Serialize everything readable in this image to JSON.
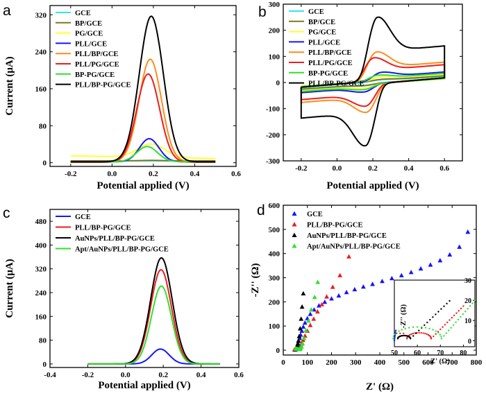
{
  "figure": {
    "panels": [
      {
        "id": "a",
        "letter": "a"
      },
      {
        "id": "b",
        "letter": "b"
      },
      {
        "id": "c",
        "letter": "c"
      },
      {
        "id": "d",
        "letter": "d"
      }
    ]
  },
  "chart_data": [
    {
      "id": "a",
      "type": "line",
      "xlabel": "Potential applied (V)",
      "ylabel": "Current (μA)",
      "xlim": [
        -0.3,
        0.6
      ],
      "ylim": [
        -8,
        340
      ],
      "xticks": [
        "-0.2",
        "0.0",
        "0.2",
        "0.4",
        "0.6"
      ],
      "xtick_values": [
        -0.2,
        0,
        0.2,
        0.4,
        0.6
      ],
      "yticks": [
        "0",
        "80",
        "160",
        "240",
        "320"
      ],
      "ytick_values": [
        0,
        80,
        160,
        240,
        320
      ],
      "legend_position": "top-left",
      "x_range": [
        -0.2,
        0.5
      ],
      "series": [
        {
          "name": "GCE",
          "color": "#33e6f0",
          "baseline": 4,
          "peak_height": 0,
          "center": 0.19,
          "sigma": 0.06
        },
        {
          "name": "BP/GCE",
          "color": "#7a7a1e",
          "baseline": 4,
          "peak_height": 1,
          "center": 0.19,
          "sigma": 0.06
        },
        {
          "name": "PG/GCE",
          "color": "#ffff33",
          "baseline": 15,
          "baseline_end": 9,
          "peak_height": 29,
          "center": 0.19,
          "sigma": 0.065
        },
        {
          "name": "PLL/GCE",
          "color": "#1414ff",
          "baseline": 2,
          "peak_height": 50,
          "center": 0.18,
          "sigma": 0.047
        },
        {
          "name": "PLL/BP/GCE",
          "color": "#ff8c1a",
          "baseline": 2,
          "peak_height": 222,
          "center": 0.185,
          "sigma": 0.054
        },
        {
          "name": "PLL/PG/GCE",
          "color": "#ee1c1c",
          "baseline": 1,
          "peak_height": 191,
          "center": 0.175,
          "sigma": 0.055
        },
        {
          "name": "BP-PG/GCE",
          "color": "#2fe02f",
          "baseline": 2,
          "peak_height": 33,
          "center": 0.17,
          "sigma": 0.05
        },
        {
          "name": "PLL/BP-PG/GCE",
          "color": "#000000",
          "baseline": 2,
          "peak_height": 315,
          "center": 0.19,
          "sigma": 0.058
        }
      ]
    },
    {
      "id": "b",
      "type": "line",
      "xlabel": "Potential applied (V)",
      "ylabel": "",
      "xlim": [
        -0.3,
        0.7
      ],
      "ylim": [
        -300,
        300
      ],
      "xticks": [
        "-0.2",
        "0.0",
        "0.2",
        "0.4",
        "0.6"
      ],
      "xtick_values": [
        -0.2,
        0,
        0.2,
        0.4,
        0.6
      ],
      "yticks": [
        "-300",
        "-200",
        "-100",
        "0",
        "100",
        "200",
        "300"
      ],
      "ytick_values": [
        -300,
        -200,
        -100,
        0,
        100,
        200,
        300
      ],
      "legend_position": "top-left",
      "x_range": [
        -0.2,
        0.6
      ],
      "series": [
        {
          "name": "GCE",
          "color": "#33e6f0",
          "anodic_peak": 6,
          "cathodic_peak": 6,
          "epa": 0.25,
          "epc": 0.15,
          "cap": 3,
          "slope": 30
        },
        {
          "name": "BP/GCE",
          "color": "#7a7a1e",
          "anodic_peak": 6,
          "cathodic_peak": 6,
          "epa": 0.25,
          "epc": 0.15,
          "cap": 4,
          "slope": 32
        },
        {
          "name": "PG/GCE",
          "color": "#ffff33",
          "anodic_peak": 16,
          "cathodic_peak": 16,
          "epa": 0.25,
          "epc": 0.15,
          "cap": 5,
          "slope": 32
        },
        {
          "name": "PLL/GCE",
          "color": "#1414ff",
          "anodic_peak": 33,
          "cathodic_peak": 30,
          "epa": 0.25,
          "epc": 0.15,
          "cap": 4,
          "slope": 36
        },
        {
          "name": "PLL/BP/GCE",
          "color": "#ff8c1a",
          "anodic_peak": 112,
          "cathodic_peak": 108,
          "epa": 0.22,
          "epc": 0.165,
          "cap": 5,
          "slope": 38
        },
        {
          "name": "PLL/PG/GCE",
          "color": "#ee1c1c",
          "anodic_peak": 90,
          "cathodic_peak": 84,
          "epa": 0.205,
          "epc": 0.16,
          "cap": 5,
          "slope": 38
        },
        {
          "name": "BP-PG/GCE",
          "color": "#2fe02f",
          "anodic_peak": 22,
          "cathodic_peak": 20,
          "epa": 0.23,
          "epc": 0.15,
          "cap": 5,
          "slope": 34
        },
        {
          "name": "PLL/BP-PG/GCE",
          "color": "#000000",
          "anodic_peak": 245,
          "cathodic_peak": 236,
          "epa": 0.225,
          "epc": 0.16,
          "cap": 6,
          "slope": 40
        }
      ]
    },
    {
      "id": "c",
      "type": "line",
      "xlabel": "Potential applied (V)",
      "ylabel": "Current (μA)",
      "xlim": [
        -0.4,
        0.6
      ],
      "ylim": [
        -12,
        520
      ],
      "xticks": [
        "-0.4",
        "-0.2",
        "0.0",
        "0.2",
        "0.4",
        "0.6"
      ],
      "xtick_values": [
        -0.4,
        -0.2,
        0,
        0.2,
        0.4,
        0.6
      ],
      "yticks": [
        "0",
        "80",
        "160",
        "240",
        "320",
        "400",
        "480"
      ],
      "ytick_values": [
        0,
        80,
        160,
        240,
        320,
        400,
        480
      ],
      "legend_position": "top-left",
      "x_range": [
        -0.2,
        0.5
      ],
      "series": [
        {
          "name": "GCE",
          "color": "#1414ff",
          "baseline": 0,
          "peak_height": 50,
          "center": 0.185,
          "sigma": 0.046
        },
        {
          "name": "PLL/BP-PG/GCE",
          "color": "#ee1c1c",
          "baseline": 0,
          "peak_height": 317,
          "center": 0.188,
          "sigma": 0.055
        },
        {
          "name": "AuNPs/PLL/BP-PG/GCE",
          "color": "#000000",
          "baseline": 0,
          "peak_height": 357,
          "center": 0.19,
          "sigma": 0.057
        },
        {
          "name": "Apt/AuNPs/PLL/BP-PG/GCE",
          "color": "#2fe02f",
          "baseline": 0,
          "peak_height": 262,
          "center": 0.19,
          "sigma": 0.053
        }
      ]
    },
    {
      "id": "d",
      "type": "scatter",
      "xlabel": "Z' (Ω)",
      "ylabel": "-Z'' (Ω)",
      "xlim": [
        0,
        800
      ],
      "ylim": [
        -20,
        600
      ],
      "xticks": [
        "0",
        "100",
        "200",
        "300",
        "400",
        "500",
        "600",
        "700",
        "800"
      ],
      "xtick_values": [
        0,
        100,
        200,
        300,
        400,
        500,
        600,
        700,
        800
      ],
      "yticks": [
        "0",
        "100",
        "200",
        "300",
        "400",
        "500",
        "600"
      ],
      "ytick_values": [
        0,
        100,
        200,
        300,
        400,
        500,
        600
      ],
      "legend_position": "top-left",
      "series": [
        {
          "name": "GCE",
          "color": "#1414ff",
          "marker": "triangle",
          "x": [
            50,
            52,
            55,
            58,
            61,
            64,
            68,
            72,
            77,
            83,
            90,
            100,
            112,
            128,
            148,
            172,
            200,
            230,
            262,
            296,
            332,
            370,
            410,
            450,
            490,
            530,
            570,
            610,
            650,
            690,
            730,
            765
          ],
          "y": [
            2,
            6,
            12,
            20,
            28,
            38,
            50,
            64,
            80,
            97,
            114,
            132,
            150,
            168,
            185,
            200,
            214,
            226,
            240,
            252,
            263,
            274,
            286,
            298,
            310,
            323,
            338,
            354,
            372,
            396,
            428,
            490
          ]
        },
        {
          "name": "PLL/BP-PG/GCE",
          "color": "#ee1c1c",
          "marker": "triangle",
          "x": [
            46,
            50,
            54,
            57,
            60,
            63,
            66,
            69,
            72,
            76,
            82,
            90,
            100,
            112,
            126,
            142,
            160,
            180,
            205,
            235,
            272
          ],
          "y": [
            3,
            5,
            6,
            5,
            4,
            4,
            6,
            10,
            17,
            27,
            42,
            60,
            80,
            104,
            130,
            160,
            190,
            222,
            262,
            310,
            388
          ]
        },
        {
          "name": "AuNPs/PLL/BP-PG/GCE",
          "color": "#000000",
          "marker": "triangle",
          "x": [
            50,
            52,
            54,
            56,
            58,
            60,
            63,
            66,
            70,
            74,
            78,
            83
          ],
          "y": [
            4,
            6,
            9,
            13,
            19,
            27,
            40,
            58,
            90,
            130,
            180,
            235
          ]
        },
        {
          "name": "Apt/AuNPs/PLL/BP-PG/GCE",
          "color": "#2fe02f",
          "marker": "triangle",
          "x": [
            50,
            54,
            58,
            62,
            66,
            69,
            72,
            76,
            80,
            86,
            94,
            104,
            116,
            130,
            143
          ],
          "y": [
            6,
            7,
            6,
            5,
            4,
            5,
            8,
            15,
            28,
            50,
            82,
            122,
            168,
            220,
            282
          ]
        }
      ],
      "inset": {
        "xlabel": "Z' (Ω)",
        "ylabel": "-Z'' (Ω)",
        "xlim": [
          50,
          85
        ],
        "ylim": [
          -3,
          30
        ],
        "xticks": [
          "50",
          "60",
          "70",
          "80"
        ],
        "xtick_values": [
          50,
          60,
          70,
          80
        ],
        "yticks": [
          "0",
          "10",
          "20",
          "30"
        ],
        "ytick_values": [
          0,
          10,
          20,
          30
        ],
        "series": [
          {
            "name": "GCE",
            "color": "#1414ff",
            "kind": "line",
            "x": [
              50,
              50.6
            ],
            "y": [
              0,
              5
            ]
          },
          {
            "name": "PLL/BP-PG/GCE",
            "color": "#ee1c1c",
            "kind": "semicircle-tail",
            "r0": 55.5,
            "rct": 10.5,
            "tail_to_x": 80,
            "tail_slope": 1.15
          },
          {
            "name": "AuNPs/PLL/BP-PG/GCE",
            "color": "#000000",
            "kind": "semicircle-tail",
            "r0": 51.5,
            "rct": 5.5,
            "tail_to_x": 74,
            "tail_slope": 1.1
          },
          {
            "name": "Apt/AuNPs/PLL/BP-PG/GCE",
            "color": "#2fe02f",
            "kind": "semicircle-tail",
            "r0": 49.5,
            "rct": 21,
            "tail_to_x": 85,
            "tail_slope": 1.3
          }
        ]
      }
    }
  ]
}
